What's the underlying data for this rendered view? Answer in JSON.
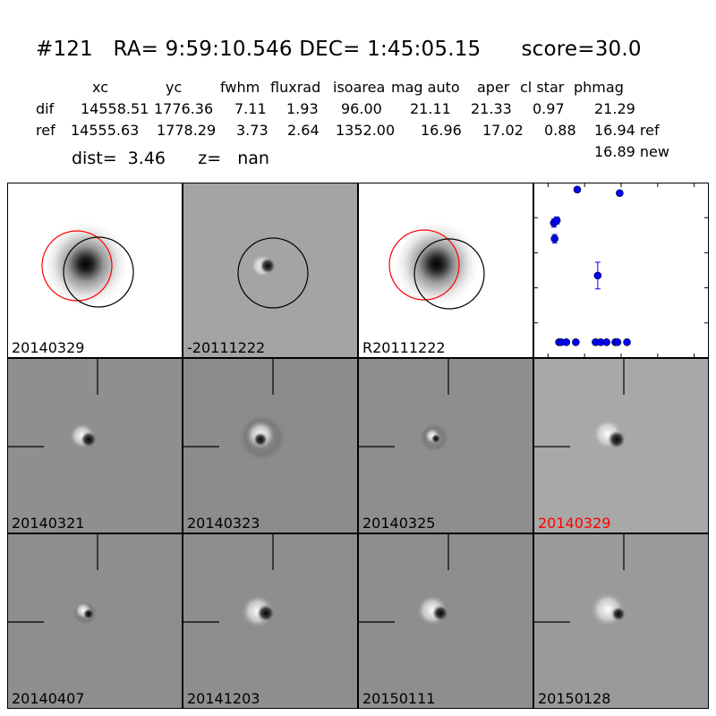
{
  "header": {
    "title": "#121   RA= 9:59:10.546 DEC= 1:45:05.15      score=30.0",
    "columns": [
      "xc",
      "yc",
      "fwhm",
      "fluxrad",
      "isoarea",
      "mag auto",
      "aper",
      "cl star",
      "phmag"
    ],
    "rows": [
      {
        "label": "dif",
        "values": [
          "14558.51",
          "1776.36",
          "7.11",
          "1.93",
          "96.00",
          "21.11",
          "21.33",
          "0.97",
          "21.29"
        ]
      },
      {
        "label": "ref",
        "values": [
          "14555.63",
          "1778.29",
          "3.73",
          "2.64",
          "1352.00",
          "16.96",
          "17.02",
          "0.88",
          "16.94 ref"
        ]
      }
    ],
    "extra": "16.89 new",
    "dist": "dist=  3.46      z=   nan"
  },
  "panels": {
    "top": [
      "20140329",
      "-20111222",
      "R20111222"
    ],
    "grid": [
      {
        "label": "20140321",
        "color": "#000000"
      },
      {
        "label": "20140323",
        "color": "#000000"
      },
      {
        "label": "20140325",
        "color": "#000000"
      },
      {
        "label": "20140329",
        "color": "#ff0000"
      },
      {
        "label": "20140407",
        "color": "#000000"
      },
      {
        "label": "20141203",
        "color": "#000000"
      },
      {
        "label": "20150111",
        "color": "#000000"
      },
      {
        "label": "20150128",
        "color": "#000000"
      }
    ]
  },
  "chart_data": {
    "type": "scatter",
    "xlim": [
      -120,
      120
    ],
    "ylim": [
      26,
      21
    ],
    "xticks": [
      "-100",
      "-50",
      "0",
      "50",
      "100"
    ],
    "yticks": [
      "21",
      "22",
      "23",
      "24",
      "25",
      "26"
    ],
    "marker_color": "#0000ff",
    "points": [
      {
        "x": -92,
        "y": 22.15,
        "err": 0.12
      },
      {
        "x": -88,
        "y": 22.08,
        "err": 0.1
      },
      {
        "x": -91,
        "y": 22.6,
        "err": 0.12
      },
      {
        "x": -85,
        "y": 25.55,
        "err": 0
      },
      {
        "x": -82,
        "y": 25.55,
        "err": 0
      },
      {
        "x": -75,
        "y": 25.55,
        "err": 0
      },
      {
        "x": -62,
        "y": 25.55,
        "err": 0
      },
      {
        "x": -60,
        "y": 21.2,
        "err": 0
      },
      {
        "x": -35,
        "y": 25.55,
        "err": 0
      },
      {
        "x": -32,
        "y": 23.65,
        "err": 0.38
      },
      {
        "x": -28,
        "y": 25.55,
        "err": 0
      },
      {
        "x": -20,
        "y": 25.55,
        "err": 0
      },
      {
        "x": -8,
        "y": 25.55,
        "err": 0
      },
      {
        "x": -5,
        "y": 25.55,
        "err": 0
      },
      {
        "x": -2,
        "y": 21.3,
        "err": 0
      },
      {
        "x": 8,
        "y": 25.55,
        "err": 0
      }
    ]
  }
}
